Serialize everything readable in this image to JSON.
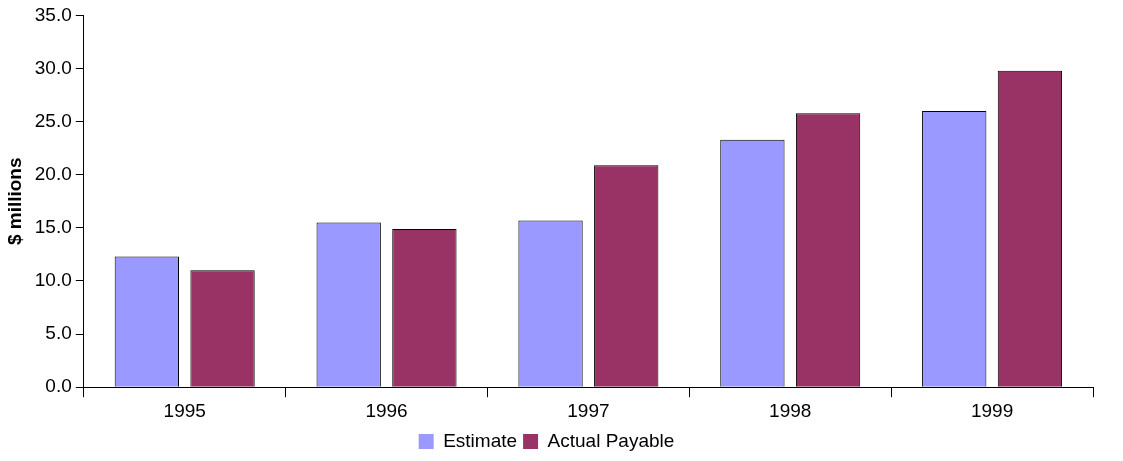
{
  "chart_data": {
    "type": "bar",
    "ylabel": "$ millions",
    "categories": [
      "1995",
      "1996",
      "1997",
      "1998",
      "1999"
    ],
    "series": [
      {
        "name": "Estimate",
        "color": "#9999ff",
        "values": [
          12.3,
          15.5,
          15.7,
          23.3,
          26.0
        ]
      },
      {
        "name": "Actual Payable",
        "color": "#993366",
        "values": [
          11.0,
          14.9,
          20.9,
          25.8,
          29.8
        ]
      }
    ],
    "ylim": [
      0,
      35
    ],
    "yticks": [
      {
        "value": 0,
        "label": "0.0"
      },
      {
        "value": 5,
        "label": "5.0"
      },
      {
        "value": 10,
        "label": "10.0"
      },
      {
        "value": 15,
        "label": "15.0"
      },
      {
        "value": 20,
        "label": "20.0"
      },
      {
        "value": 25,
        "label": "25.0"
      },
      {
        "value": 30,
        "label": "30.0"
      },
      {
        "value": 35,
        "label": "35.0"
      }
    ],
    "grid": false,
    "legend": "bottom"
  }
}
